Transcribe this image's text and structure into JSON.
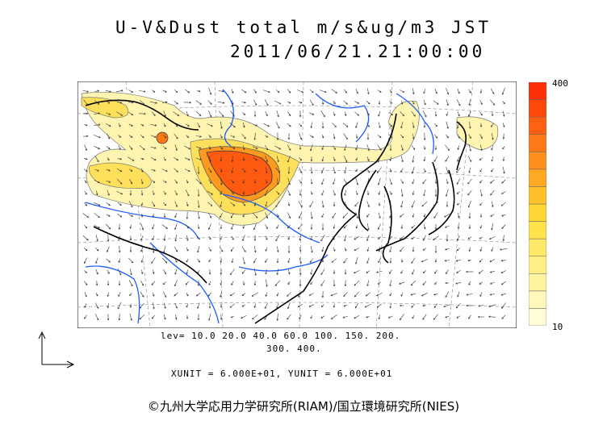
{
  "header": {
    "title_line1": "U-V&Dust total m/s&ug/m3 JST",
    "title_line2": "2011/06/21.21:00:00"
  },
  "colorbar": {
    "max_label": "400",
    "min_label": "10",
    "colors": [
      "#fffdd8",
      "#fff8bc",
      "#fff3a0",
      "#ffee84",
      "#ffe868",
      "#ffe24c",
      "#ffd633",
      "#ffc02a",
      "#ffa824",
      "#ff901e",
      "#ff7818",
      "#ff6012",
      "#ff480c",
      "#ff3006"
    ]
  },
  "footer": {
    "levels_line1": "lev= 10.0 20.0 40.0 60.0 100. 150. 200.",
    "levels_line2": "300. 400.",
    "units_line": "XUNIT = 6.000E+01, YUNIT = 6.000E+01",
    "copyright": "©九州大学応用力学研究所(RIAM)/国立環境研究所(NIES)"
  },
  "map": {
    "region": "East Asia",
    "fill_colors": {
      "light": "#fff5b0",
      "mid": "#ffe05a",
      "orange": "#ff9a20",
      "red": "#ff5a10"
    }
  }
}
